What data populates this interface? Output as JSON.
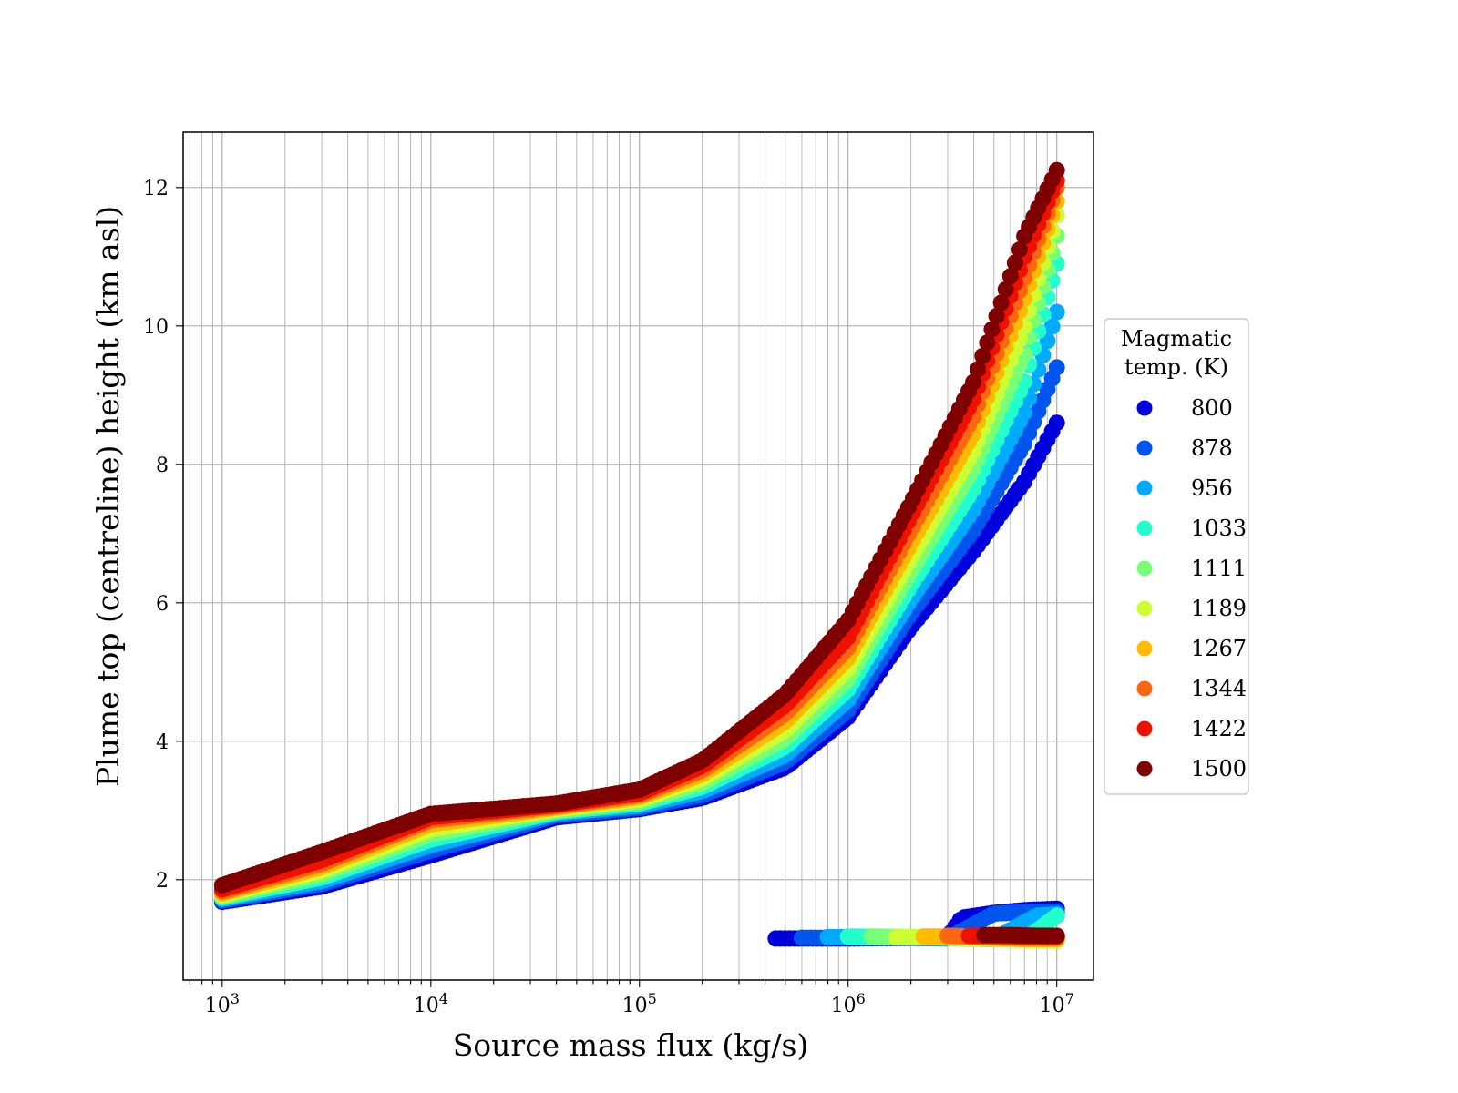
{
  "chart_data": {
    "type": "scatter",
    "title": "",
    "xlabel": "Source mass flux (kg/s)",
    "ylabel": "Plume top (centreline) height (km asl)",
    "x_scale": "log",
    "xlim": [
      650,
      15000000
    ],
    "ylim": [
      0.55,
      12.8
    ],
    "x_tick_labels": [
      {
        "value": 1000,
        "base": "10",
        "exp": "3"
      },
      {
        "value": 10000,
        "base": "10",
        "exp": "4"
      },
      {
        "value": 100000,
        "base": "10",
        "exp": "5"
      },
      {
        "value": 1000000,
        "base": "10",
        "exp": "6"
      },
      {
        "value": 10000000,
        "base": "10",
        "exp": "7"
      }
    ],
    "y_ticks": [
      2,
      4,
      6,
      8,
      10,
      12
    ],
    "grid": true,
    "legend": {
      "title_line1": "Magmatic",
      "title_line2": "temp. (K)",
      "placement": "outside-right"
    },
    "series": [
      {
        "name": "800",
        "color": "#0000dd",
        "upper_branch": {
          "x": [
            1000,
            3000,
            10000,
            40000,
            100000,
            200000,
            500000,
            1000000,
            2000000,
            4000000,
            7000000,
            10000000
          ],
          "y": [
            1.68,
            1.9,
            2.35,
            2.9,
            3.02,
            3.18,
            3.62,
            4.35,
            5.65,
            6.75,
            7.75,
            8.6
          ]
        },
        "lower_branch": {
          "x": [
            450000,
            1000000,
            2000000,
            3000000,
            3500000,
            5000000,
            7000000,
            10000000
          ],
          "y": [
            1.15,
            1.15,
            1.16,
            1.17,
            1.45,
            1.52,
            1.56,
            1.58
          ]
        }
      },
      {
        "name": "878",
        "color": "#0055ee",
        "upper_branch": {
          "x": [
            1000,
            3000,
            10000,
            40000,
            100000,
            200000,
            500000,
            1000000,
            2000000,
            4000000,
            7000000,
            10000000
          ],
          "y": [
            1.7,
            1.94,
            2.42,
            2.93,
            3.04,
            3.22,
            3.7,
            4.45,
            5.85,
            7.05,
            8.3,
            9.4
          ]
        },
        "lower_branch": {
          "x": [
            600000,
            1000000,
            2000000,
            3000000,
            5000000,
            7000000,
            10000000
          ],
          "y": [
            1.16,
            1.16,
            1.16,
            1.15,
            1.51,
            1.53,
            1.54
          ]
        }
      },
      {
        "name": "956",
        "color": "#00aaff",
        "upper_branch": {
          "x": [
            1000,
            3000,
            10000,
            40000,
            100000,
            200000,
            500000,
            1000000,
            2000000,
            4000000,
            7000000,
            10000000
          ],
          "y": [
            1.72,
            1.98,
            2.5,
            2.96,
            3.07,
            3.28,
            3.8,
            4.6,
            6.05,
            7.35,
            8.75,
            10.2
          ]
        },
        "lower_branch": {
          "x": [
            800000,
            1000000,
            2000000,
            3000000,
            5000000,
            8000000,
            10000000
          ],
          "y": [
            1.17,
            1.17,
            1.17,
            1.16,
            1.14,
            1.48,
            1.5
          ]
        }
      },
      {
        "name": "1033",
        "color": "#22ffcc",
        "upper_branch": {
          "x": [
            1000,
            3000,
            10000,
            40000,
            100000,
            200000,
            500000,
            1000000,
            2000000,
            4000000,
            7000000,
            10000000
          ],
          "y": [
            1.74,
            2.03,
            2.58,
            2.98,
            3.1,
            3.34,
            3.92,
            4.75,
            6.25,
            7.65,
            9.2,
            10.9
          ]
        },
        "lower_branch": {
          "x": [
            1000000,
            2000000,
            3000000,
            5000000,
            7000000,
            10000000
          ],
          "y": [
            1.18,
            1.17,
            1.16,
            1.14,
            1.13,
            1.48
          ]
        }
      },
      {
        "name": "1111",
        "color": "#77ff77",
        "upper_branch": {
          "x": [
            1000,
            3000,
            10000,
            40000,
            100000,
            200000,
            500000,
            1000000,
            2000000,
            4000000,
            7000000,
            10000000
          ],
          "y": [
            1.76,
            2.08,
            2.66,
            3.0,
            3.13,
            3.4,
            4.04,
            4.9,
            6.45,
            7.95,
            9.6,
            11.3
          ]
        },
        "lower_branch": {
          "x": [
            1300000,
            2000000,
            3000000,
            5000000,
            7000000,
            10000000
          ],
          "y": [
            1.18,
            1.17,
            1.16,
            1.14,
            1.13,
            1.12
          ]
        }
      },
      {
        "name": "1189",
        "color": "#ccff33",
        "upper_branch": {
          "x": [
            1000,
            3000,
            10000,
            40000,
            100000,
            200000,
            500000,
            1000000,
            2000000,
            4000000,
            7000000,
            10000000
          ],
          "y": [
            1.78,
            2.13,
            2.73,
            3.02,
            3.16,
            3.46,
            4.16,
            5.05,
            6.65,
            8.2,
            10.0,
            11.6
          ]
        },
        "lower_branch": {
          "x": [
            1700000,
            2500000,
            3500000,
            5000000,
            7000000,
            10000000
          ],
          "y": [
            1.17,
            1.17,
            1.16,
            1.15,
            1.13,
            1.12
          ]
        }
      },
      {
        "name": "1267",
        "color": "#ffbb00",
        "upper_branch": {
          "x": [
            1000,
            3000,
            10000,
            40000,
            100000,
            200000,
            500000,
            1000000,
            2000000,
            4000000,
            7000000,
            10000000
          ],
          "y": [
            1.8,
            2.18,
            2.8,
            3.04,
            3.19,
            3.52,
            4.28,
            5.2,
            6.85,
            8.45,
            10.4,
            11.8
          ]
        },
        "lower_branch": {
          "x": [
            2300000,
            3000000,
            4000000,
            5000000,
            7000000,
            10000000
          ],
          "y": [
            1.18,
            1.18,
            1.17,
            1.16,
            1.14,
            1.14
          ]
        }
      },
      {
        "name": "1344",
        "color": "#ff6611",
        "upper_branch": {
          "x": [
            1000,
            3000,
            10000,
            40000,
            100000,
            200000,
            500000,
            1000000,
            2000000,
            4000000,
            7000000,
            10000000
          ],
          "y": [
            1.83,
            2.23,
            2.86,
            3.06,
            3.22,
            3.58,
            4.4,
            5.35,
            7.05,
            8.7,
            10.7,
            12.0
          ]
        },
        "lower_branch": {
          "x": [
            3000000,
            4000000,
            5000000,
            7000000,
            10000000
          ],
          "y": [
            1.19,
            1.18,
            1.17,
            1.16,
            1.16
          ]
        }
      },
      {
        "name": "1422",
        "color": "#ee1100",
        "upper_branch": {
          "x": [
            1000,
            3000,
            10000,
            40000,
            100000,
            200000,
            500000,
            1000000,
            2000000,
            4000000,
            7000000,
            10000000
          ],
          "y": [
            1.86,
            2.28,
            2.9,
            3.08,
            3.25,
            3.64,
            4.52,
            5.5,
            7.25,
            8.95,
            11.0,
            12.1
          ]
        },
        "lower_branch": {
          "x": [
            3800000,
            5000000,
            7000000,
            10000000
          ],
          "y": [
            1.19,
            1.19,
            1.18,
            1.18
          ]
        }
      },
      {
        "name": "1500",
        "color": "#7f0000",
        "upper_branch": {
          "x": [
            1000,
            3000,
            10000,
            40000,
            100000,
            200000,
            500000,
            1000000,
            2000000,
            4000000,
            7000000,
            10000000
          ],
          "y": [
            1.92,
            2.4,
            2.95,
            3.1,
            3.3,
            3.72,
            4.68,
            5.75,
            7.45,
            9.2,
            11.3,
            12.25
          ]
        },
        "lower_branch": {
          "x": [
            4500000,
            6000000,
            8000000,
            10000000
          ],
          "y": [
            1.2,
            1.2,
            1.19,
            1.19
          ]
        }
      }
    ]
  }
}
